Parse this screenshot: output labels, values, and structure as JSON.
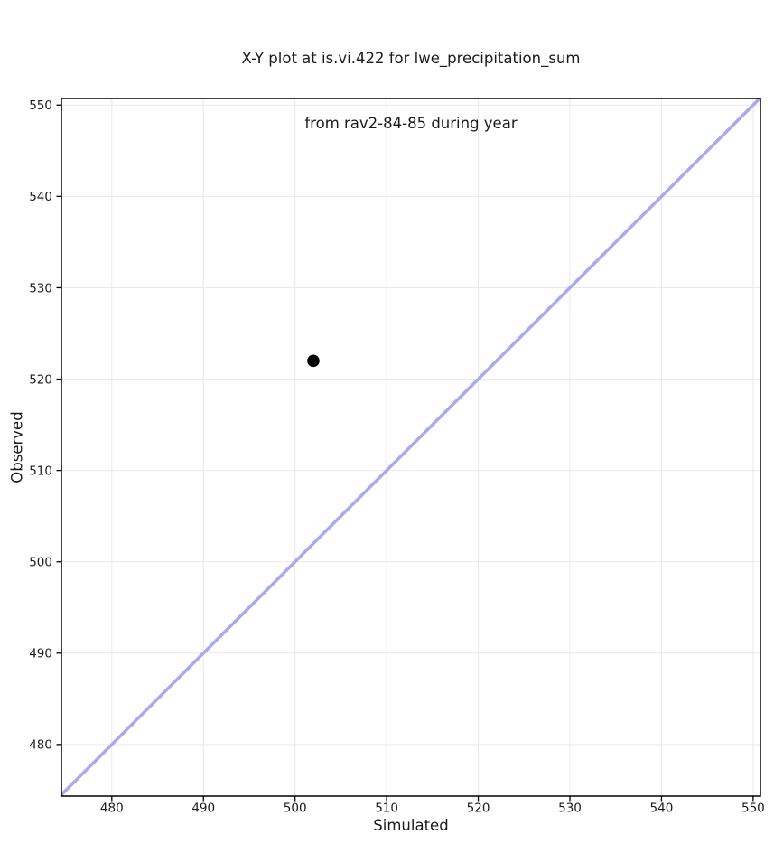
{
  "figure": {
    "background": "#ffffff"
  },
  "chart_data": {
    "type": "scatter",
    "title_lines": [
      "X-Y plot at is.vi.422 for lwe_precipitation_sum",
      "from rav2-84-85 during year"
    ],
    "title": "X-Y plot at is.vi.422 for lwe_precipitation_sum\nfrom rav2-84-85 during year",
    "xlabel": "Simulated",
    "ylabel": "Observed",
    "xlim": [
      474.5,
      550.8
    ],
    "ylim": [
      474.35,
      550.72
    ],
    "xticks": [
      480,
      490,
      500,
      510,
      520,
      530,
      540,
      550
    ],
    "yticks": [
      480,
      490,
      500,
      510,
      520,
      530,
      540,
      550
    ],
    "grid": true,
    "legend": "none",
    "series": [
      {
        "name": "identity-line",
        "type": "line",
        "description": "1:1 line (y = x), corner to corner",
        "identity": true,
        "color": "#a9a9f2",
        "line_width": 3.5
      },
      {
        "name": "observed-vs-simulated",
        "type": "scatter",
        "points": [
          {
            "x": 502,
            "y": 522
          }
        ],
        "color": "#000000",
        "marker": "circle",
        "marker_radius": 6.8
      }
    ],
    "colors": {
      "grid": "#e9e9e9",
      "spine": "#000000",
      "tick": "#000000",
      "text": "#1a1a1a"
    }
  }
}
